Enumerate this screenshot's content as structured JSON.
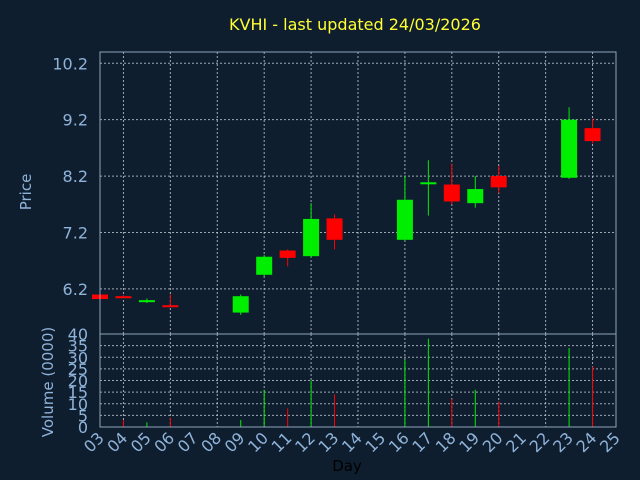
{
  "chart_data": {
    "type": "candlestick",
    "title": "KVHI - last updated 24/03/2026",
    "ylabel": "Price",
    "volume_label": "Volume (0000)",
    "xlabel": "Day",
    "price_ticks": [
      "6.2",
      "7.2",
      "8.2",
      "9.2",
      "10.2"
    ],
    "price_ylim": [
      5.4,
      10.4
    ],
    "volume_ticks": [
      "0",
      "5",
      "10",
      "15",
      "20",
      "25",
      "30",
      "35",
      "40"
    ],
    "volume_ylim": [
      0,
      40
    ],
    "x_ticks": [
      "03",
      "04",
      "05",
      "06",
      "07",
      "08",
      "09",
      "10",
      "11",
      "12",
      "13",
      "14",
      "15",
      "16",
      "17",
      "18",
      "19",
      "20",
      "21",
      "22",
      "23",
      "24",
      "25"
    ],
    "up_color": "#00ee00",
    "down_color": "#ff0000",
    "grid": true,
    "candles": [
      {
        "day": "03",
        "open": 6.1,
        "high": 6.12,
        "low": 6.0,
        "close": 6.02,
        "volume": 0
      },
      {
        "day": "04",
        "open": 6.07,
        "high": 6.09,
        "low": 6.05,
        "close": 6.06,
        "volume": 3
      },
      {
        "day": "05",
        "open": 5.98,
        "high": 6.03,
        "low": 5.95,
        "close": 6.0,
        "volume": 2
      },
      {
        "day": "06",
        "open": 5.91,
        "high": 6.1,
        "low": 5.88,
        "close": 5.9,
        "volume": 4
      },
      {
        "day": "09",
        "open": 5.78,
        "high": 6.1,
        "low": 5.74,
        "close": 6.07,
        "volume": 3
      },
      {
        "day": "10",
        "open": 6.45,
        "high": 6.8,
        "low": 6.42,
        "close": 6.77,
        "volume": 16
      },
      {
        "day": "11",
        "open": 6.88,
        "high": 6.9,
        "low": 6.6,
        "close": 6.75,
        "volume": 8
      },
      {
        "day": "12",
        "open": 6.78,
        "high": 7.72,
        "low": 6.75,
        "close": 7.44,
        "volume": 20
      },
      {
        "day": "13",
        "open": 7.45,
        "high": 7.52,
        "low": 6.9,
        "close": 7.07,
        "volume": 14
      },
      {
        "day": "16",
        "open": 7.07,
        "high": 8.2,
        "low": 7.05,
        "close": 7.78,
        "volume": 29
      },
      {
        "day": "17",
        "open": 8.07,
        "high": 8.48,
        "low": 7.5,
        "close": 8.09,
        "volume": 38
      },
      {
        "day": "18",
        "open": 8.05,
        "high": 8.42,
        "low": 7.7,
        "close": 7.75,
        "volume": 12
      },
      {
        "day": "19",
        "open": 7.72,
        "high": 8.2,
        "low": 7.64,
        "close": 7.97,
        "volume": 16
      },
      {
        "day": "20",
        "open": 8.2,
        "high": 8.38,
        "low": 7.9,
        "close": 8.0,
        "volume": 11
      },
      {
        "day": "23",
        "open": 8.17,
        "high": 9.42,
        "low": 8.15,
        "close": 9.2,
        "volume": 34
      },
      {
        "day": "24",
        "open": 9.05,
        "high": 9.22,
        "low": 8.78,
        "close": 8.82,
        "volume": 26
      }
    ]
  }
}
